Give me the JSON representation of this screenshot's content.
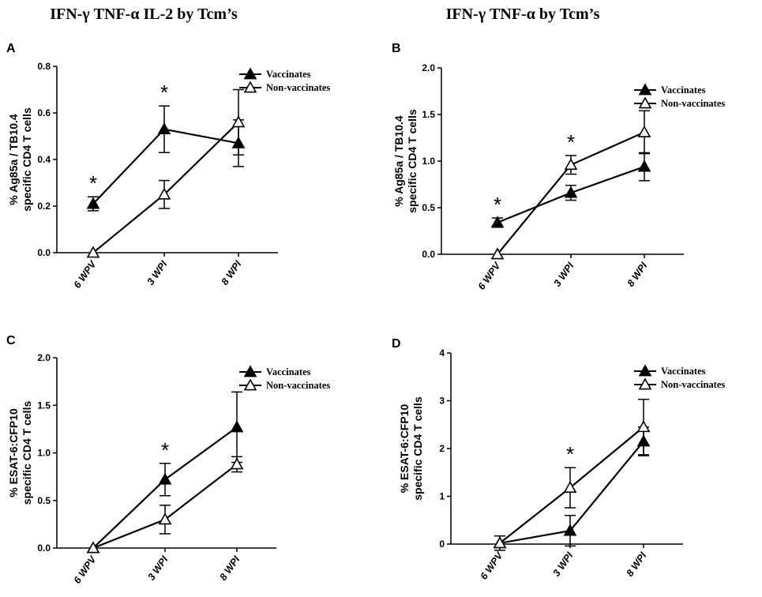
{
  "titles": [
    "IFN-γ TNF-α IL-2 by Tcm’s",
    "IFN-γ TNF-α by Tcm’s"
  ],
  "colors": {
    "line": "#000000",
    "background": "#ffffff"
  },
  "chart_data": [
    {
      "panel": "A",
      "type": "line",
      "categories": [
        "6 WPV",
        "3 WPI",
        "8 WPI"
      ],
      "ylabel": [
        "% Ag85a / TB10.4",
        "specific CD4 T cells"
      ],
      "ylim": [
        0,
        0.8
      ],
      "yticks": [
        "0.0",
        "0.2",
        "0.4",
        "0.6",
        "0.8"
      ],
      "ytick_values": [
        0,
        0.2,
        0.4,
        0.6,
        0.8
      ],
      "legend": [
        "Vaccinates",
        "Non-vaccinates"
      ],
      "series": [
        {
          "name": "Vaccinates",
          "marker": "filled-triangle",
          "values": [
            0.21,
            0.53,
            0.47
          ],
          "errors": [
            0.03,
            0.1,
            0.1
          ]
        },
        {
          "name": "Non-vaccinates",
          "marker": "open-triangle",
          "values": [
            0.0,
            0.25,
            0.56
          ],
          "errors": [
            0.0,
            0.06,
            0.14
          ]
        }
      ],
      "significance": [
        "*",
        "*",
        ""
      ]
    },
    {
      "panel": "B",
      "type": "line",
      "categories": [
        "6 WPV",
        "3 WPI",
        "8 WPI"
      ],
      "ylabel": [
        "% Ag85a / TB10.4",
        "specific CD4 T cells"
      ],
      "ylim": [
        0,
        2.0
      ],
      "yticks": [
        "0.0",
        "0.5",
        "1.0",
        "1.5",
        "2.0"
      ],
      "ytick_values": [
        0,
        0.5,
        1.0,
        1.5,
        2.0
      ],
      "legend": [
        "Vaccinates",
        "Non-vaccinates"
      ],
      "series": [
        {
          "name": "Vaccinates",
          "marker": "filled-triangle",
          "values": [
            0.34,
            0.66,
            0.94
          ],
          "errors": [
            0.05,
            0.08,
            0.15
          ]
        },
        {
          "name": "Non-vaccinates",
          "marker": "open-triangle",
          "values": [
            0.0,
            0.96,
            1.31
          ],
          "errors": [
            0.0,
            0.1,
            0.23
          ]
        }
      ],
      "significance": [
        "*",
        "*",
        ""
      ]
    },
    {
      "panel": "C",
      "type": "line",
      "categories": [
        "6 WPV",
        "3 WPI",
        "8 WPI"
      ],
      "ylabel": [
        "% ESAT-6:CFP10",
        "specific CD4 T cells"
      ],
      "ylim": [
        0,
        2.0
      ],
      "yticks": [
        "0.0",
        "0.5",
        "1.0",
        "1.5",
        "2.0"
      ],
      "ytick_values": [
        0,
        0.5,
        1.0,
        1.5,
        2.0
      ],
      "legend": [
        "Vaccinates",
        "Non-vaccinates"
      ],
      "series": [
        {
          "name": "Vaccinates",
          "marker": "filled-triangle",
          "values": [
            0.0,
            0.72,
            1.27
          ],
          "errors": [
            0.0,
            0.17,
            0.37
          ]
        },
        {
          "name": "Non-vaccinates",
          "marker": "open-triangle",
          "values": [
            0.0,
            0.3,
            0.88
          ],
          "errors": [
            0.0,
            0.15,
            0.08
          ]
        }
      ],
      "significance": [
        "",
        "*",
        ""
      ]
    },
    {
      "panel": "D",
      "type": "line",
      "categories": [
        "6 WPV",
        "3 WPI",
        "8 WPI"
      ],
      "ylabel": [
        "% ESAT-6:CFP10",
        "specific CD4 T cells"
      ],
      "ylim": [
        0,
        4
      ],
      "yticks": [
        "0",
        "1",
        "2",
        "3",
        "4"
      ],
      "ytick_values": [
        0,
        1,
        2,
        3,
        4
      ],
      "legend": [
        "Vaccinates",
        "Non-vaccinates"
      ],
      "series": [
        {
          "name": "Vaccinates",
          "marker": "filled-triangle",
          "values": [
            0.02,
            0.28,
            2.15
          ],
          "errors": [
            0.15,
            0.32,
            0.3
          ]
        },
        {
          "name": "Non-vaccinates",
          "marker": "open-triangle",
          "values": [
            0.02,
            1.18,
            2.45
          ],
          "errors": [
            0.0,
            0.42,
            0.58
          ]
        }
      ],
      "significance": [
        "",
        "*",
        ""
      ]
    }
  ]
}
